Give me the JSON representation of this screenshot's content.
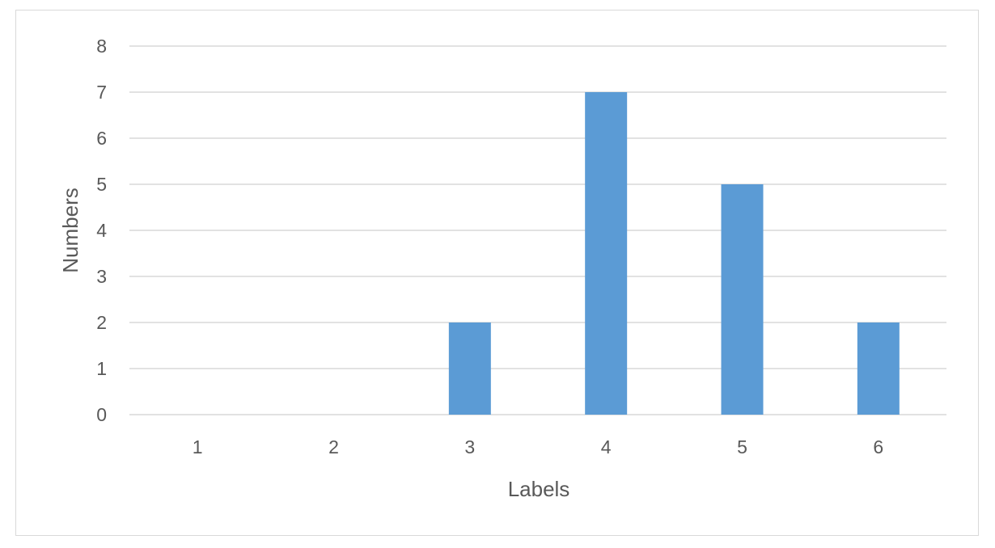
{
  "chart_data": {
    "type": "bar",
    "title": "",
    "xlabel": "Labels",
    "ylabel": "Numbers",
    "categories": [
      "1",
      "2",
      "3",
      "4",
      "5",
      "6"
    ],
    "values": [
      0,
      0,
      2,
      7,
      5,
      2
    ],
    "ylim": [
      0,
      8
    ],
    "yticks": [
      "0",
      "1",
      "2",
      "3",
      "4",
      "5",
      "6",
      "7",
      "8"
    ],
    "grid": true,
    "legend": "none",
    "colors": {
      "bar": "#5b9bd5",
      "grid": "#d9d9d9",
      "text": "#595959",
      "border": "#d9d9d9"
    }
  }
}
